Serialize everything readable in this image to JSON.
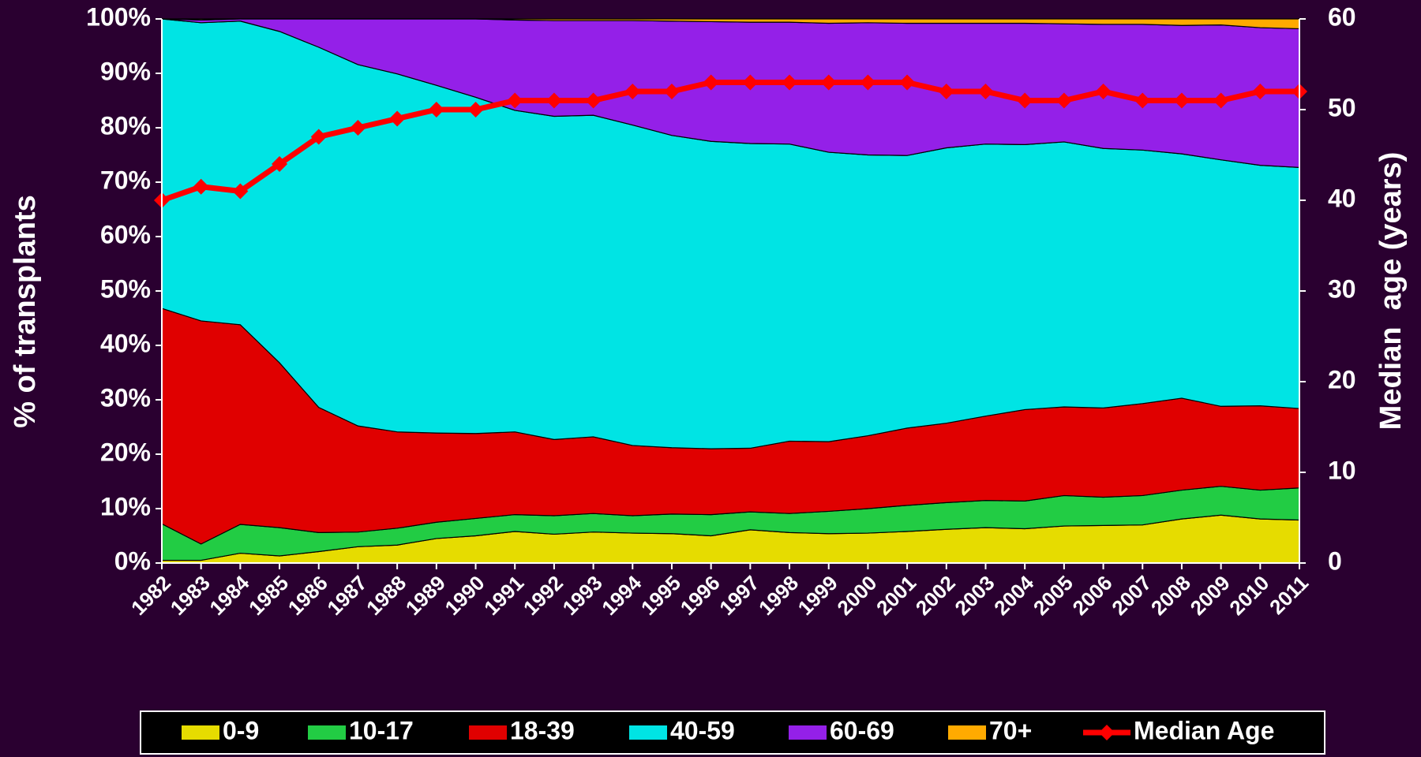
{
  "chart_data": {
    "type": "area",
    "stacked": true,
    "y_label": "% of transplants",
    "y2_label": "Median  age (years)",
    "categories": [
      "1982",
      "1983",
      "1984",
      "1985",
      "1986",
      "1987",
      "1988",
      "1989",
      "1990",
      "1991",
      "1992",
      "1993",
      "1994",
      "1995",
      "1996",
      "1997",
      "1998",
      "1999",
      "2000",
      "2001",
      "2002",
      "2003",
      "2004",
      "2005",
      "2006",
      "2007",
      "2008",
      "2009",
      "2010",
      "2011"
    ],
    "series": [
      {
        "name": "0-9",
        "color": "#e6dc00",
        "values": [
          0.5,
          0.5,
          1.8,
          1.3,
          2.1,
          3.0,
          3.3,
          4.5,
          5.0,
          5.8,
          5.3,
          5.7,
          5.5,
          5.4,
          5.0,
          6.1,
          5.6,
          5.4,
          5.5,
          5.8,
          6.2,
          6.5,
          6.3,
          6.8,
          6.9,
          7.0,
          8.1,
          8.8,
          8.1,
          7.9
        ]
      },
      {
        "name": "10-17",
        "color": "#22cc44",
        "values": [
          6.7,
          3.0,
          5.3,
          5.2,
          3.5,
          2.7,
          3.1,
          3.0,
          3.2,
          3.1,
          3.4,
          3.4,
          3.2,
          3.6,
          3.9,
          3.3,
          3.5,
          4.1,
          4.5,
          4.8,
          4.9,
          5.0,
          5.1,
          5.6,
          5.2,
          5.4,
          5.3,
          5.3,
          5.3,
          5.9
        ]
      },
      {
        "name": "18-39",
        "color": "#e00000",
        "values": [
          39.6,
          41.0,
          36.7,
          30.3,
          23.0,
          19.5,
          17.7,
          16.4,
          15.6,
          15.2,
          14.0,
          14.1,
          12.9,
          12.2,
          12.1,
          11.7,
          13.3,
          12.8,
          13.4,
          14.2,
          14.6,
          15.5,
          16.8,
          16.3,
          16.4,
          16.9,
          16.9,
          14.7,
          15.5,
          14.6
        ]
      },
      {
        "name": "40-59",
        "color": "#00e4e4",
        "values": [
          53.2,
          54.8,
          55.8,
          60.9,
          66.2,
          66.4,
          65.8,
          63.9,
          61.8,
          59.1,
          59.4,
          59.1,
          58.9,
          57.4,
          56.5,
          56.0,
          54.6,
          53.2,
          51.6,
          50.1,
          50.6,
          50.0,
          48.7,
          48.7,
          47.7,
          46.6,
          44.9,
          45.3,
          44.2,
          44.3
        ]
      },
      {
        "name": "60-69",
        "color": "#9420e8",
        "values": [
          0,
          0.5,
          0.4,
          2.3,
          5.2,
          8.4,
          10.1,
          12.2,
          14.4,
          16.6,
          17.6,
          17.4,
          19.2,
          21.0,
          22.0,
          22.3,
          22.4,
          23.7,
          24.3,
          24.3,
          22.9,
          22.2,
          22.3,
          21.7,
          22.8,
          23.1,
          23.6,
          24.8,
          25.3,
          25.5
        ]
      },
      {
        "name": "70+",
        "color": "#ffaa00",
        "values": [
          0,
          0.2,
          0,
          0,
          0,
          0,
          0,
          0,
          0,
          0.2,
          0.3,
          0.3,
          0.3,
          0.4,
          0.5,
          0.6,
          0.6,
          0.8,
          0.7,
          0.8,
          0.8,
          0.8,
          0.8,
          0.9,
          1.0,
          1.0,
          1.2,
          1.1,
          1.6,
          1.8
        ]
      },
      {
        "name": "Median Age",
        "type": "line",
        "axis": "y2",
        "color": "#ff0000",
        "values": [
          40,
          41.5,
          41,
          44,
          47,
          48,
          49,
          50,
          50,
          51,
          51,
          51,
          52,
          52,
          53,
          53,
          53,
          53,
          53,
          53,
          52,
          52,
          51,
          51,
          52,
          51,
          51,
          51,
          52,
          52
        ]
      }
    ],
    "ylim": [
      0,
      100
    ],
    "yticks": [
      {
        "value": 0,
        "label": "0%"
      },
      {
        "value": 10,
        "label": "10%"
      },
      {
        "value": 20,
        "label": "20%"
      },
      {
        "value": 30,
        "label": "30%"
      },
      {
        "value": 40,
        "label": "40%"
      },
      {
        "value": 50,
        "label": "50%"
      },
      {
        "value": 60,
        "label": "60%"
      },
      {
        "value": 70,
        "label": "70%"
      },
      {
        "value": 80,
        "label": "80%"
      },
      {
        "value": 90,
        "label": "90%"
      },
      {
        "value": 100,
        "label": "100%"
      }
    ],
    "y2lim": [
      0,
      60
    ],
    "y2ticks": [
      0,
      10,
      20,
      30,
      40,
      50,
      60
    ],
    "legend": "bottom"
  }
}
